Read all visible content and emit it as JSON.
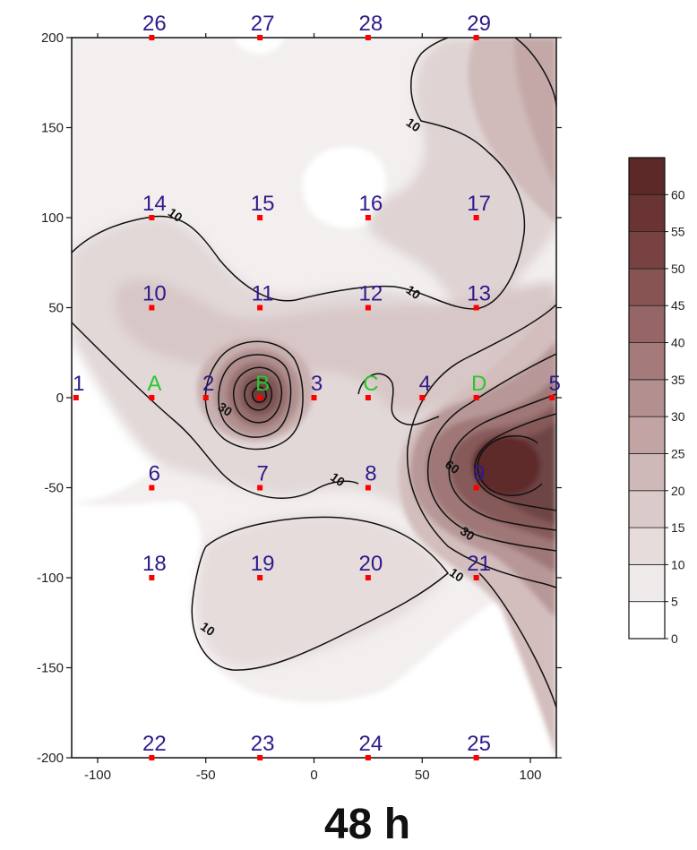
{
  "chart_data": {
    "type": "heatmap",
    "title": "48 h",
    "xlabel": "",
    "ylabel": "",
    "xlim": [
      -112,
      112
    ],
    "ylim": [
      -200,
      200
    ],
    "x_ticks": [
      -100,
      -50,
      0,
      50,
      100
    ],
    "y_ticks": [
      200,
      150,
      100,
      50,
      0,
      -50,
      -100,
      -150,
      -200
    ],
    "grid": false,
    "colorbar": {
      "placement": "right",
      "levels": [
        0,
        5,
        10,
        15,
        20,
        25,
        30,
        35,
        40,
        45,
        50,
        55,
        60
      ],
      "colors": [
        "#ffffff",
        "#f0ebeb",
        "#e6dcdc",
        "#dbcaca",
        "#cfb8b8",
        "#c2a4a4",
        "#b38f8f",
        "#a47a7a",
        "#966666",
        "#875353",
        "#784242",
        "#6a3434",
        "#5c2828"
      ]
    },
    "stations": [
      {
        "label": "1",
        "x": -110,
        "y": 0,
        "kind": "number"
      },
      {
        "label": "A",
        "x": -75,
        "y": 0,
        "kind": "letter"
      },
      {
        "label": "2",
        "x": -50,
        "y": 0,
        "kind": "number"
      },
      {
        "label": "B",
        "x": -25,
        "y": 0,
        "kind": "letter"
      },
      {
        "label": "3",
        "x": 0,
        "y": 0,
        "kind": "number"
      },
      {
        "label": "C",
        "x": 25,
        "y": 0,
        "kind": "letter"
      },
      {
        "label": "4",
        "x": 50,
        "y": 0,
        "kind": "number"
      },
      {
        "label": "D",
        "x": 75,
        "y": 0,
        "kind": "letter"
      },
      {
        "label": "5",
        "x": 110,
        "y": 0,
        "kind": "number"
      },
      {
        "label": "6",
        "x": -75,
        "y": -50,
        "kind": "number"
      },
      {
        "label": "7",
        "x": -25,
        "y": -50,
        "kind": "number"
      },
      {
        "label": "8",
        "x": 25,
        "y": -50,
        "kind": "number"
      },
      {
        "label": "9",
        "x": 75,
        "y": -50,
        "kind": "number"
      },
      {
        "label": "10",
        "x": -75,
        "y": 50,
        "kind": "number"
      },
      {
        "label": "11",
        "x": -25,
        "y": 50,
        "kind": "number"
      },
      {
        "label": "12",
        "x": 25,
        "y": 50,
        "kind": "number"
      },
      {
        "label": "13",
        "x": 75,
        "y": 50,
        "kind": "number"
      },
      {
        "label": "14",
        "x": -75,
        "y": 100,
        "kind": "number"
      },
      {
        "label": "15",
        "x": -25,
        "y": 100,
        "kind": "number"
      },
      {
        "label": "16",
        "x": 25,
        "y": 100,
        "kind": "number"
      },
      {
        "label": "17",
        "x": 75,
        "y": 100,
        "kind": "number"
      },
      {
        "label": "18",
        "x": -75,
        "y": -100,
        "kind": "number"
      },
      {
        "label": "19",
        "x": -25,
        "y": -100,
        "kind": "number"
      },
      {
        "label": "20",
        "x": 25,
        "y": -100,
        "kind": "number"
      },
      {
        "label": "21",
        "x": 75,
        "y": -100,
        "kind": "number"
      },
      {
        "label": "22",
        "x": -75,
        "y": -200,
        "kind": "number"
      },
      {
        "label": "23",
        "x": -25,
        "y": -200,
        "kind": "number"
      },
      {
        "label": "24",
        "x": 25,
        "y": -200,
        "kind": "number"
      },
      {
        "label": "25",
        "x": 75,
        "y": -200,
        "kind": "number"
      },
      {
        "label": "26",
        "x": -75,
        "y": 200,
        "kind": "number"
      },
      {
        "label": "27",
        "x": -25,
        "y": 200,
        "kind": "number"
      },
      {
        "label": "28",
        "x": 25,
        "y": 200,
        "kind": "number"
      },
      {
        "label": "29",
        "x": 75,
        "y": 200,
        "kind": "number"
      }
    ],
    "contour_labels": [
      {
        "text": "10",
        "x": -65,
        "y": 100
      },
      {
        "text": "10",
        "x": 45,
        "y": 150
      },
      {
        "text": "10",
        "x": 45,
        "y": 57
      },
      {
        "text": "30",
        "x": -42,
        "y": -8
      },
      {
        "text": "10",
        "x": 10,
        "y": -47
      },
      {
        "text": "60",
        "x": 63,
        "y": -40
      },
      {
        "text": "30",
        "x": 70,
        "y": -77
      },
      {
        "text": "10",
        "x": 65,
        "y": -100
      },
      {
        "text": "10",
        "x": -50,
        "y": -130
      }
    ],
    "colors": {
      "station_number": "#2f1a8c",
      "station_letter": "#28c828",
      "marker": "#ff0000",
      "contour_line": "#111111"
    }
  }
}
